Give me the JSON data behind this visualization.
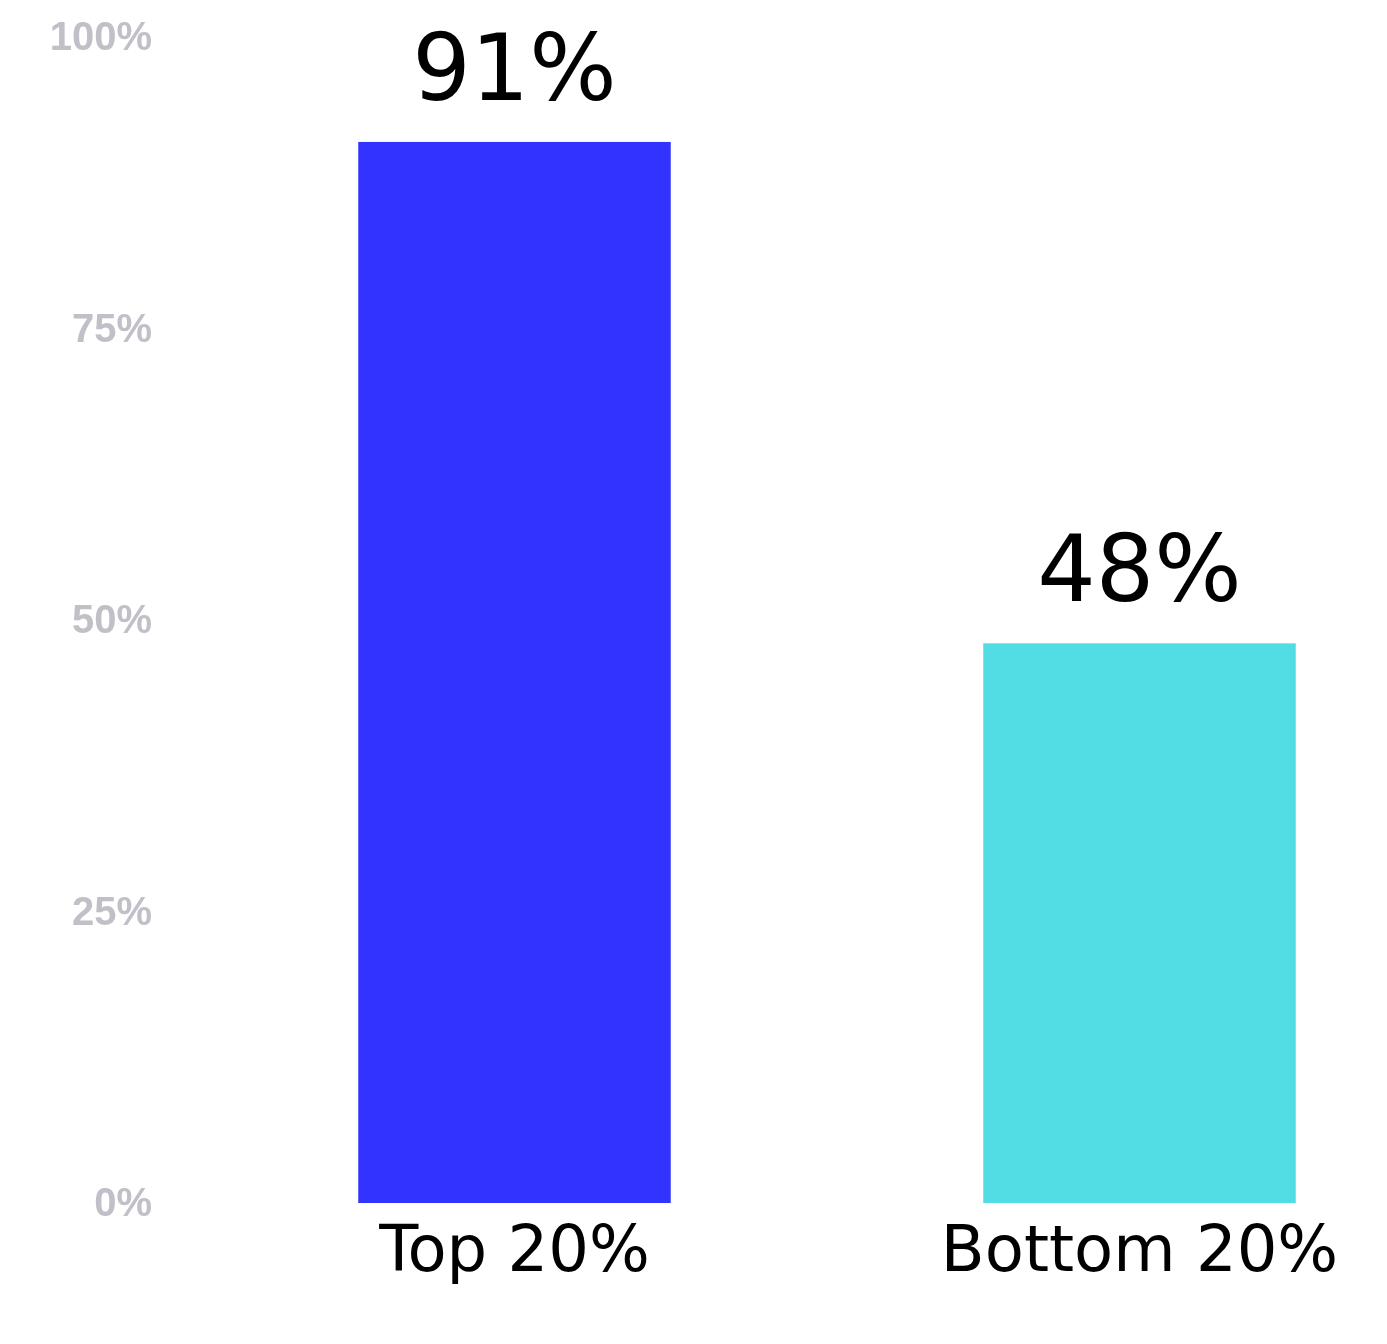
{
  "chart_data": {
    "type": "bar",
    "categories": [
      "Top 20%",
      "Bottom 20%"
    ],
    "values": [
      91,
      48
    ],
    "colors": [
      "#3333ff",
      "#52dde4"
    ],
    "value_labels": [
      "91%",
      "48%"
    ],
    "ylim": [
      0,
      100
    ],
    "yticks": [
      {
        "value": 0,
        "label": "0%"
      },
      {
        "value": 25,
        "label": "25%"
      },
      {
        "value": 50,
        "label": "50%"
      },
      {
        "value": 75,
        "label": "75%"
      },
      {
        "value": 100,
        "label": "100%"
      }
    ]
  }
}
